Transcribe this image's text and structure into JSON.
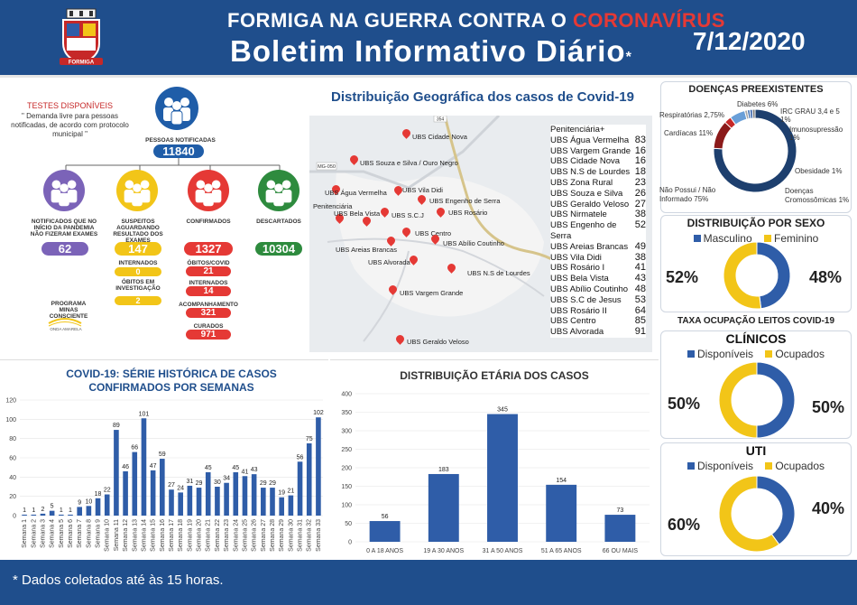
{
  "header": {
    "title_part1": "FORMIGA NA GUERRA CONTRA O ",
    "title_highlight": "CORONAVÍRUS",
    "subtitle": "Boletim Informativo Diário",
    "asterisk": "*",
    "date": "7/12/2020",
    "crest_text": "FORMIGA"
  },
  "left_panel": {
    "testes_title": "TESTES DISPONÍVEIS",
    "testes_desc": "\" Demanda livre para pessoas notificadas, de acordo com protocolo municipal \"",
    "notificadas_label": "PESSOAS NOTIFICADAS",
    "notificadas_value": "11840",
    "nodes": [
      {
        "label": "NOTIFICADOS QUE NO INÍCIO DA PANDEMIA NÃO FIZERAM EXAMES",
        "value": "62",
        "color": "#7b63b8"
      },
      {
        "label": "SUSPEITOS AGUARDANDO RESULTADO DOS EXAMES",
        "value": "147",
        "color": "#f2c518"
      },
      {
        "label": "CONFIRMADOS",
        "value": "1327",
        "color": "#e53935"
      },
      {
        "label": "DESCARTADOS",
        "value": "10304",
        "color": "#2e8b3e"
      }
    ],
    "sub_suspeitos": [
      {
        "label": "INTERNADOS",
        "value": "0"
      },
      {
        "label": "ÓBITOS EM INVESTIGAÇÃO",
        "value": "2"
      }
    ],
    "sub_confirmados": [
      {
        "label": "ÓBITOS/COVID",
        "value": "21"
      },
      {
        "label": "INTERNADOS",
        "value": "14"
      },
      {
        "label": "ACOMPANHAMENTO",
        "value": "321"
      },
      {
        "label": "CURADOS",
        "value": "971"
      }
    ],
    "programa": "PROGRAMA MINAS CONSCIENTE",
    "onda": "ONDA AMARELA"
  },
  "map_section": {
    "title": "Distribuição Geográfica dos casos de Covid-19",
    "road_labels": [
      "354",
      "MG-050"
    ],
    "pins": [
      {
        "label": "UBS Cidade Nova"
      },
      {
        "label": "UBS Souza e Silva / Ouro Negro"
      },
      {
        "label": "UBS Água Vermelha"
      },
      {
        "label": "UBS Vila Didi"
      },
      {
        "label": "UBS Engenho de Serra"
      },
      {
        "label": "Penitenciária"
      },
      {
        "label": "UBS S.C.J"
      },
      {
        "label": "UBS Rosário"
      },
      {
        "label": "UBS Bela Vista"
      },
      {
        "label": "UBS Centro"
      },
      {
        "label": "UBS Areias Brancas"
      },
      {
        "label": "UBS Abílio Coutinho"
      },
      {
        "label": "UBS Alvorada"
      },
      {
        "label": "UBS N.S de Lourdes"
      },
      {
        "label": "UBS Vargem Grande"
      },
      {
        "label": "UBS Geraldo Veloso"
      }
    ],
    "table": [
      {
        "name": "Penitenciária+",
        "value": ""
      },
      {
        "name": "UBS Água Vermelha",
        "value": "83"
      },
      {
        "name": "UBS Vargem Grande",
        "value": "16"
      },
      {
        "name": "UBS Cidade Nova",
        "value": "16"
      },
      {
        "name": "UBS N.S de Lourdes",
        "value": "18"
      },
      {
        "name": "UBS Zona Rural",
        "value": "23"
      },
      {
        "name": "UBS Souza e Silva",
        "value": "26"
      },
      {
        "name": "UBS Geraldo Veloso",
        "value": "27"
      },
      {
        "name": "UBS Nirmatele",
        "value": "38"
      },
      {
        "name": "UBS Engenho de Serra",
        "value": "52"
      },
      {
        "name": "UBS Areias Brancas",
        "value": "49"
      },
      {
        "name": "UBS Vila Didi",
        "value": "38"
      },
      {
        "name": "UBS Rosário I",
        "value": "41"
      },
      {
        "name": "UBS Bela Vista",
        "value": "43"
      },
      {
        "name": "UBS Abílio Coutinho",
        "value": "48"
      },
      {
        "name": "UBS S.C de Jesus",
        "value": "53"
      },
      {
        "name": "UBS Rosário II",
        "value": "64"
      },
      {
        "name": "UBS Centro",
        "value": "85"
      },
      {
        "name": "UBS Alvorada",
        "value": "91"
      }
    ]
  },
  "right_panel": {
    "doencas_title": "DOENÇAS PREEXISTENTES",
    "sexo_title": "DISTRIBUIÇÃO POR SEXO",
    "taxa_title": "TAXA OCUPAÇÃO LEITOS COVID-19",
    "clinicos_title": "CLÍNICOS",
    "uti_title": "UTI",
    "legend_masc": "Masculino",
    "legend_fem": "Feminino",
    "legend_disp": "Disponíveis",
    "legend_ocup": "Ocupados",
    "sexo_left": "52%",
    "sexo_right": "48%",
    "clin_left": "50%",
    "clin_right": "50%",
    "uti_left": "60%",
    "uti_right": "40%",
    "color_blue": "#2f5da8",
    "color_yellow": "#f2c518",
    "color_navy": "#1d3f6e"
  },
  "footer": {
    "note": "* Dados coletados até às 15 horas."
  },
  "chart_data": [
    {
      "type": "bar",
      "title": "COVID-19: SÉRIE HISTÓRICA DE CASOS CONFIRMADOS POR SEMANAS",
      "categories": [
        "Semana 1",
        "Semana 2",
        "Semana 3",
        "Semana 4",
        "Semana 5",
        "Semana 6",
        "Semana 7",
        "Semana 8",
        "Semana 9",
        "Semana 10",
        "Semana 11",
        "Semana 12",
        "Semana 13",
        "Semana 14",
        "Semana 15",
        "Semana 16",
        "Semana 17",
        "Semana 18",
        "Semana 19",
        "Semana 20",
        "Semana 21",
        "Semana 22",
        "Semana 23",
        "Semana 24",
        "Semana 25",
        "Semana 26",
        "Semana 27",
        "Semana 28",
        "Semana 29",
        "Semana 30",
        "Semana 31",
        "Semana 32",
        "Semana 33"
      ],
      "values": [
        1,
        1,
        2,
        5,
        1,
        1,
        9,
        10,
        18,
        22,
        89,
        46,
        66,
        101,
        47,
        59,
        27,
        24,
        31,
        29,
        45,
        30,
        34,
        45,
        41,
        43,
        29,
        29,
        19,
        21,
        56,
        75,
        102
      ],
      "ylim": [
        0,
        120
      ],
      "yticks": [
        0,
        20,
        40,
        60,
        80,
        100,
        120
      ],
      "color": "#2f5da8"
    },
    {
      "type": "bar",
      "title": "DISTRIBUIÇÃO ETÁRIA DOS CASOS",
      "categories": [
        "0 A 18 ANOS",
        "19 A 30 ANOS",
        "31 A 50 ANOS",
        "51 A 65 ANOS",
        "66 OU MAIS"
      ],
      "values": [
        56,
        183,
        345,
        154,
        73
      ],
      "ylim": [
        0,
        400
      ],
      "yticks": [
        0,
        50,
        100,
        150,
        200,
        250,
        300,
        350,
        400
      ],
      "color": "#2f5da8"
    },
    {
      "type": "pie",
      "title": "DOENÇAS PREEXISTENTES",
      "labels": [
        "Diabetes 6%",
        "Respiratórias 2,75%",
        "Cardíacas 11%",
        "IRC GRAU 3,4 e 5 1%",
        "Imunosupressão 1%",
        "Obesidade 1%",
        "Doenças Cromossômicas 1%",
        "Não Possui / Não Informado 75%"
      ],
      "values": [
        6,
        2.75,
        11,
        1,
        1,
        1,
        1,
        75
      ]
    },
    {
      "type": "pie",
      "title": "DISTRIBUIÇÃO POR SEXO",
      "labels": [
        "Masculino",
        "Feminino"
      ],
      "values": [
        48,
        52
      ]
    },
    {
      "type": "pie",
      "title": "CLÍNICOS",
      "labels": [
        "Disponíveis",
        "Ocupados"
      ],
      "values": [
        50,
        50
      ]
    },
    {
      "type": "pie",
      "title": "UTI",
      "labels": [
        "Disponíveis",
        "Ocupados"
      ],
      "values": [
        40,
        60
      ]
    }
  ]
}
